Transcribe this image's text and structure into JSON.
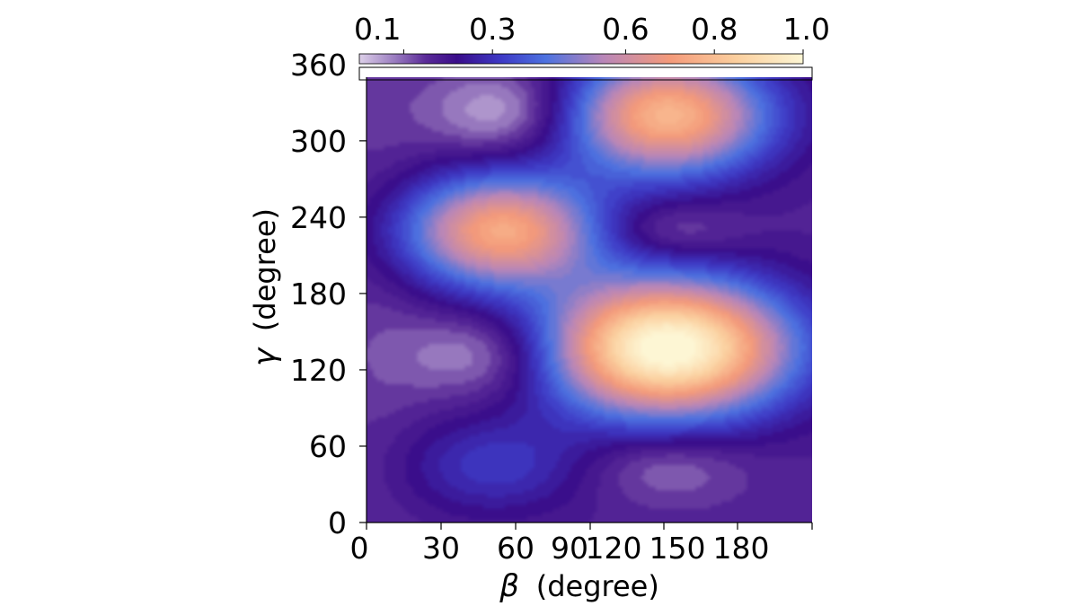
{
  "chart_data": {
    "type": "heatmap",
    "xlabel_symbol": "β",
    "xlabel_unit": "(degree)",
    "ylabel_symbol": "γ",
    "ylabel_unit": "(degree)",
    "x_ticks": [
      0,
      30,
      60,
      90,
      120,
      150,
      180
    ],
    "x_tick_labels": [
      "0",
      "30",
      "60",
      "90",
      "120",
      "150",
      "180"
    ],
    "xlim": [
      0,
      180
    ],
    "y_ticks": [
      0,
      60,
      120,
      180,
      240,
      300,
      360
    ],
    "y_tick_labels": [
      "0",
      "60",
      "120",
      "180",
      "240",
      "300",
      "360"
    ],
    "ylim": [
      0,
      350
    ],
    "colorbar": {
      "position": "top",
      "range": [
        0,
        1.0
      ],
      "ticks": [
        0.1,
        0.3,
        0.6,
        0.8,
        1.0
      ],
      "tick_labels": [
        "0.1",
        "0.3",
        "0.6",
        "0.8",
        "1.0"
      ],
      "colormap": [
        {
          "v": 0.0,
          "color": "#dccfe8"
        },
        {
          "v": 0.08,
          "color": "#9a7cc0"
        },
        {
          "v": 0.15,
          "color": "#5a2a98"
        },
        {
          "v": 0.22,
          "color": "#3a0d8a"
        },
        {
          "v": 0.32,
          "color": "#3e3ac6"
        },
        {
          "v": 0.42,
          "color": "#4d72e0"
        },
        {
          "v": 0.55,
          "color": "#b986b8"
        },
        {
          "v": 0.7,
          "color": "#f49a7a"
        },
        {
          "v": 0.85,
          "color": "#fbcf9e"
        },
        {
          "v": 1.0,
          "color": "#fdf6d4"
        }
      ]
    },
    "field": {
      "background": 0.17,
      "features": [
        {
          "beta": 57,
          "gamma": 320,
          "amplitude": -0.15,
          "sigma_beta": 22,
          "sigma_gamma": 24
        },
        {
          "beta": 55,
          "gamma": 228,
          "amplitude": 0.57,
          "sigma_beta": 27,
          "sigma_gamma": 30
        },
        {
          "beta": 50,
          "gamma": 133,
          "amplitude": -0.14,
          "sigma_beta": 24,
          "sigma_gamma": 24
        },
        {
          "beta": 52,
          "gamma": 47,
          "amplitude": 0.14,
          "sigma_beta": 26,
          "sigma_gamma": 26
        },
        {
          "beta": 120,
          "gamma": 228,
          "amplitude": -0.09,
          "sigma_beta": 20,
          "sigma_gamma": 16
        },
        {
          "beta": 120,
          "gamma": 47,
          "amplitude": -0.09,
          "sigma_beta": 22,
          "sigma_gamma": 20
        },
        {
          "beta": 120,
          "gamma": 317,
          "amplitude": 0.61,
          "sigma_beta": 28,
          "sigma_gamma": 32
        },
        {
          "beta": 120,
          "gamma": 138,
          "amplitude": 0.87,
          "sigma_beta": 33,
          "sigma_gamma": 36
        },
        {
          "beta": 5,
          "gamma": 175,
          "amplitude": -0.03,
          "sigma_beta": 15,
          "sigma_gamma": 180
        }
      ]
    }
  }
}
